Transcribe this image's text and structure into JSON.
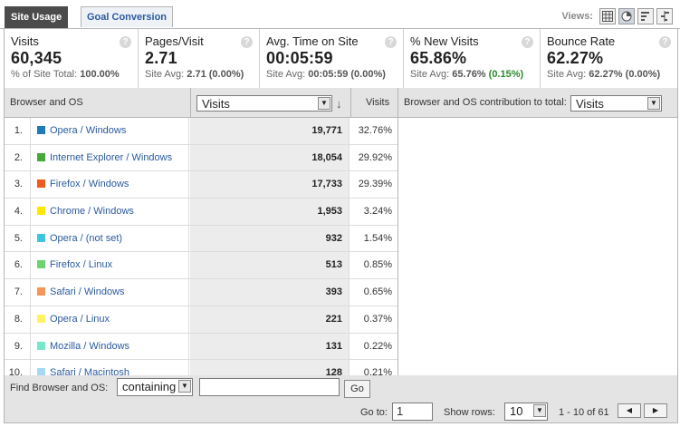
{
  "tabs": [
    {
      "label": "Site Usage",
      "active": true
    },
    {
      "label": "Goal Conversion",
      "active": false
    }
  ],
  "views_label": "Views:",
  "view_icons": [
    "table-view-icon",
    "pie-view-icon",
    "performance-view-icon",
    "comparison-view-icon"
  ],
  "metrics": [
    {
      "title": "Visits",
      "value": "60,345",
      "sub_prefix": "% of Site Total: ",
      "sub_value": "100.00%",
      "sub_change": ""
    },
    {
      "title": "Pages/Visit",
      "value": "2.71",
      "sub_prefix": "Site Avg: ",
      "sub_value": "2.71",
      "sub_change": "(0.00%)"
    },
    {
      "title": "Avg. Time on Site",
      "value": "00:05:59",
      "sub_prefix": "Site Avg: ",
      "sub_value": "00:05:59",
      "sub_change": "(0.00%)"
    },
    {
      "title": "% New Visits",
      "value": "65.86%",
      "sub_prefix": "Site Avg: ",
      "sub_value": "65.76%",
      "sub_change": "(0.15%)"
    },
    {
      "title": "Bounce Rate",
      "value": "62.27%",
      "sub_prefix": "Site Avg: ",
      "sub_value": "62.27%",
      "sub_change": "(0.00%)"
    }
  ],
  "table": {
    "col_dimension": "Browser and OS",
    "col_metric_select": "Visits",
    "col_visits": "Visits",
    "contrib_label": "Browser and OS contribution to total:",
    "contrib_select": "Visits",
    "rows": [
      {
        "rank": "1.",
        "name": "Opera / Windows",
        "color": "#1f7ab8",
        "visits": "19,771",
        "pct": "32.76%"
      },
      {
        "rank": "2.",
        "name": "Internet Explorer / Windows",
        "color": "#45a83a",
        "visits": "18,054",
        "pct": "29.92%"
      },
      {
        "rank": "3.",
        "name": "Firefox / Windows",
        "color": "#f05a1a",
        "visits": "17,733",
        "pct": "29.39%"
      },
      {
        "rank": "4.",
        "name": "Chrome / Windows",
        "color": "#ffe800",
        "visits": "1,953",
        "pct": "3.24%"
      },
      {
        "rank": "5.",
        "name": "Opera / (not set)",
        "color": "#3ec4dc",
        "visits": "932",
        "pct": "1.54%"
      },
      {
        "rank": "6.",
        "name": "Firefox / Linux",
        "color": "#6ed36e",
        "visits": "513",
        "pct": "0.85%"
      },
      {
        "rank": "7.",
        "name": "Safari / Windows",
        "color": "#f79458",
        "visits": "393",
        "pct": "0.65%"
      },
      {
        "rank": "8.",
        "name": "Opera / Linux",
        "color": "#fff264",
        "visits": "221",
        "pct": "0.37%"
      },
      {
        "rank": "9.",
        "name": "Mozilla / Windows",
        "color": "#78e6c8",
        "visits": "131",
        "pct": "0.22%"
      },
      {
        "rank": "10.",
        "name": "Safari / Macintosh",
        "color": "#a6d8f5",
        "visits": "128",
        "pct": "0.21%"
      }
    ]
  },
  "footer": {
    "find_label": "Find Browser and OS:",
    "filter_mode": "containing",
    "filter_value": "",
    "go_label": "Go",
    "goto_label": "Go to:",
    "goto_value": "1",
    "show_rows_label": "Show rows:",
    "show_rows_value": "10",
    "range_text": "1 - 10 of 61"
  }
}
